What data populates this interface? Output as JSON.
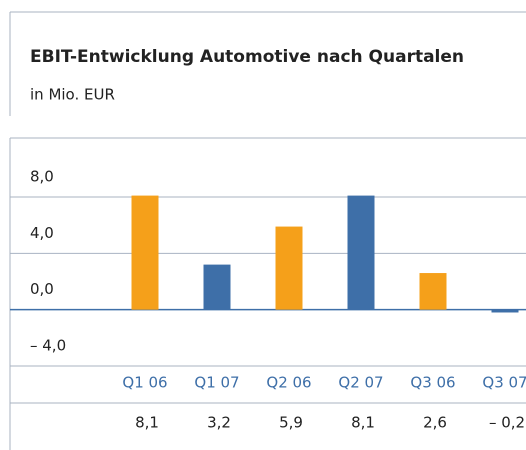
{
  "chart_data": {
    "type": "bar",
    "title": "EBIT-Entwicklung Automotive nach Quartalen",
    "subtitle": "in Mio. EUR",
    "categories": [
      "Q1 06",
      "Q1 07",
      "Q2 06",
      "Q2 07",
      "Q3 06",
      "Q3 07"
    ],
    "values": [
      8.1,
      3.2,
      5.9,
      8.1,
      2.6,
      -0.2
    ],
    "value_labels": [
      "8,1",
      "3,2",
      "5,9",
      "8,1",
      "2,6",
      "– 0,2"
    ],
    "colors": [
      "#f5a01a",
      "#3e6fa8",
      "#f5a01a",
      "#3e6fa8",
      "#f5a01a",
      "#3e6fa8"
    ],
    "ylim": [
      -4,
      8
    ],
    "yticks": [
      {
        "value": 8,
        "label": "8,0"
      },
      {
        "value": 4,
        "label": "4,0"
      },
      {
        "value": 0,
        "label": "0,0"
      },
      {
        "value": -4,
        "label": "– 4,0"
      }
    ],
    "grid": true
  }
}
